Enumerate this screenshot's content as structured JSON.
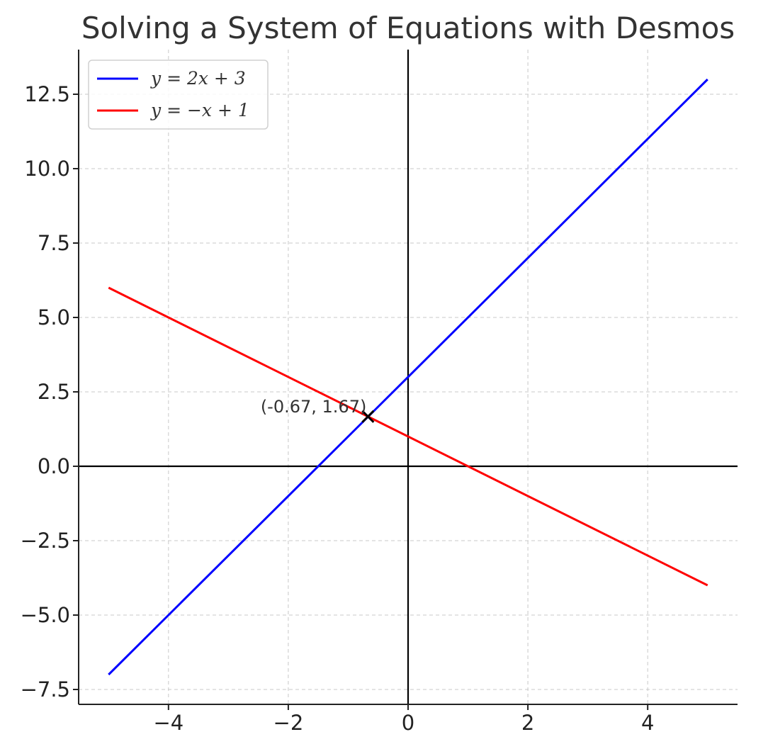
{
  "chart_data": {
    "type": "line",
    "title": "Solving a System of Equations with Desmos",
    "xlabel": "",
    "ylabel": "",
    "xlim": [
      -5.5,
      5.5
    ],
    "ylim": [
      -8.0,
      14.0
    ],
    "grid": true,
    "legend_position": "top-left",
    "x_ticks": [
      -4,
      -2,
      0,
      2,
      4
    ],
    "x_tick_labels": [
      "−4",
      "−2",
      "0",
      "2",
      "4"
    ],
    "y_ticks": [
      -7.5,
      -5.0,
      -2.5,
      0.0,
      2.5,
      5.0,
      7.5,
      10.0,
      12.5
    ],
    "y_tick_labels": [
      "−7.5",
      "−5.0",
      "−2.5",
      "0.0",
      "2.5",
      "5.0",
      "7.5",
      "10.0",
      "12.5"
    ],
    "series": [
      {
        "name": "y = 2x + 3",
        "color": "#0000ff",
        "x": [
          -5,
          5
        ],
        "y": [
          -7,
          13
        ]
      },
      {
        "name": "y = −x + 1",
        "color": "#ff0000",
        "x": [
          -5,
          5
        ],
        "y": [
          6,
          -4
        ]
      }
    ],
    "intersection": {
      "x": -0.67,
      "y": 1.67,
      "label": "(-0.67, 1.67)",
      "marker": "x",
      "color": "#000000"
    },
    "reference_lines": {
      "x_axis_at": 0,
      "y_axis_at": 0,
      "color": "#000000"
    }
  }
}
